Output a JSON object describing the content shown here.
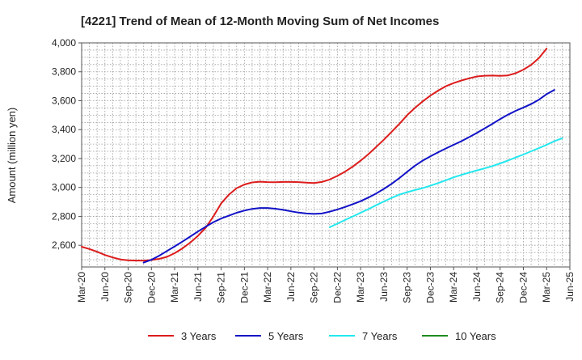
{
  "chart_data": {
    "type": "line",
    "title": "[4221]  Trend of Mean of 12-Month Moving Sum of Net Incomes",
    "xlabel": "",
    "ylabel": "Amount (million yen)",
    "ylim": [
      2450,
      4000
    ],
    "y_ticks": [
      2600,
      2800,
      3000,
      3200,
      3400,
      3600,
      3800,
      4000
    ],
    "y_tick_labels": [
      "2,600",
      "2,800",
      "3,000",
      "3,200",
      "3,400",
      "3,600",
      "3,800",
      "4,000"
    ],
    "x_range": [
      "2020-03",
      "2025-06"
    ],
    "x_tick_labels": [
      "Mar-20",
      "Jun-20",
      "Sep-20",
      "Dec-20",
      "Mar-21",
      "Jun-21",
      "Sep-21",
      "Dec-21",
      "Mar-22",
      "Jun-22",
      "Sep-22",
      "Dec-22",
      "Mar-23",
      "Jun-23",
      "Sep-23",
      "Dec-23",
      "Mar-24",
      "Jun-24",
      "Sep-24",
      "Dec-24",
      "Mar-25",
      "Jun-25"
    ],
    "grid": true,
    "legend_position": "bottom",
    "series": [
      {
        "name": "3 Years",
        "color": "#dd1c1c",
        "points": [
          [
            "2020-03",
            2590
          ],
          [
            "2020-04",
            2574
          ],
          [
            "2020-05",
            2555
          ],
          [
            "2020-06",
            2533
          ],
          [
            "2020-07",
            2516
          ],
          [
            "2020-08",
            2502
          ],
          [
            "2020-09",
            2496
          ],
          [
            "2020-10",
            2494
          ],
          [
            "2020-11",
            2494
          ],
          [
            "2020-12",
            2498
          ],
          [
            "2021-01",
            2506
          ],
          [
            "2021-02",
            2520
          ],
          [
            "2021-03",
            2545
          ],
          [
            "2021-04",
            2578
          ],
          [
            "2021-05",
            2618
          ],
          [
            "2021-06",
            2665
          ],
          [
            "2021-07",
            2720
          ],
          [
            "2021-08",
            2800
          ],
          [
            "2021-09",
            2890
          ],
          [
            "2021-10",
            2950
          ],
          [
            "2021-11",
            2995
          ],
          [
            "2021-12",
            3020
          ],
          [
            "2022-01",
            3035
          ],
          [
            "2022-02",
            3040
          ],
          [
            "2022-03",
            3037
          ],
          [
            "2022-04",
            3036
          ],
          [
            "2022-05",
            3038
          ],
          [
            "2022-06",
            3038
          ],
          [
            "2022-07",
            3037
          ],
          [
            "2022-08",
            3033
          ],
          [
            "2022-09",
            3030
          ],
          [
            "2022-10",
            3038
          ],
          [
            "2022-11",
            3055
          ],
          [
            "2022-12",
            3080
          ],
          [
            "2023-01",
            3110
          ],
          [
            "2023-02",
            3145
          ],
          [
            "2023-03",
            3185
          ],
          [
            "2023-04",
            3230
          ],
          [
            "2023-05",
            3280
          ],
          [
            "2023-06",
            3330
          ],
          [
            "2023-07",
            3385
          ],
          [
            "2023-08",
            3440
          ],
          [
            "2023-09",
            3500
          ],
          [
            "2023-10",
            3550
          ],
          [
            "2023-11",
            3595
          ],
          [
            "2023-12",
            3635
          ],
          [
            "2024-01",
            3670
          ],
          [
            "2024-02",
            3700
          ],
          [
            "2024-03",
            3722
          ],
          [
            "2024-04",
            3740
          ],
          [
            "2024-05",
            3755
          ],
          [
            "2024-06",
            3768
          ],
          [
            "2024-07",
            3773
          ],
          [
            "2024-08",
            3774
          ],
          [
            "2024-09",
            3772
          ],
          [
            "2024-10",
            3775
          ],
          [
            "2024-11",
            3790
          ],
          [
            "2024-12",
            3815
          ],
          [
            "2025-01",
            3848
          ],
          [
            "2025-02",
            3895
          ],
          [
            "2025-03",
            3960
          ]
        ]
      },
      {
        "name": "5 Years",
        "color": "#1212c8",
        "points": [
          [
            "2020-11",
            2480
          ],
          [
            "2020-12",
            2500
          ],
          [
            "2021-01",
            2528
          ],
          [
            "2021-02",
            2560
          ],
          [
            "2021-03",
            2592
          ],
          [
            "2021-04",
            2625
          ],
          [
            "2021-05",
            2660
          ],
          [
            "2021-06",
            2695
          ],
          [
            "2021-07",
            2728
          ],
          [
            "2021-08",
            2760
          ],
          [
            "2021-09",
            2785
          ],
          [
            "2021-10",
            2805
          ],
          [
            "2021-11",
            2825
          ],
          [
            "2021-12",
            2840
          ],
          [
            "2022-01",
            2852
          ],
          [
            "2022-02",
            2858
          ],
          [
            "2022-03",
            2858
          ],
          [
            "2022-04",
            2853
          ],
          [
            "2022-05",
            2845
          ],
          [
            "2022-06",
            2835
          ],
          [
            "2022-07",
            2826
          ],
          [
            "2022-08",
            2820
          ],
          [
            "2022-09",
            2817
          ],
          [
            "2022-10",
            2820
          ],
          [
            "2022-11",
            2832
          ],
          [
            "2022-12",
            2848
          ],
          [
            "2023-01",
            2865
          ],
          [
            "2023-02",
            2885
          ],
          [
            "2023-03",
            2905
          ],
          [
            "2023-04",
            2930
          ],
          [
            "2023-05",
            2958
          ],
          [
            "2023-06",
            2990
          ],
          [
            "2023-07",
            3025
          ],
          [
            "2023-08",
            3065
          ],
          [
            "2023-09",
            3108
          ],
          [
            "2023-10",
            3150
          ],
          [
            "2023-11",
            3185
          ],
          [
            "2023-12",
            3215
          ],
          [
            "2024-01",
            3243
          ],
          [
            "2024-02",
            3270
          ],
          [
            "2024-03",
            3295
          ],
          [
            "2024-04",
            3320
          ],
          [
            "2024-05",
            3348
          ],
          [
            "2024-06",
            3377
          ],
          [
            "2024-07",
            3408
          ],
          [
            "2024-08",
            3440
          ],
          [
            "2024-09",
            3473
          ],
          [
            "2024-10",
            3503
          ],
          [
            "2024-11",
            3530
          ],
          [
            "2024-12",
            3553
          ],
          [
            "2025-01",
            3577
          ],
          [
            "2025-02",
            3607
          ],
          [
            "2025-03",
            3645
          ],
          [
            "2025-04",
            3675
          ]
        ]
      },
      {
        "name": "7 Years",
        "color": "#22e8ee",
        "points": [
          [
            "2022-11",
            2725
          ],
          [
            "2022-12",
            2750
          ],
          [
            "2023-01",
            2775
          ],
          [
            "2023-02",
            2800
          ],
          [
            "2023-03",
            2825
          ],
          [
            "2023-04",
            2850
          ],
          [
            "2023-05",
            2877
          ],
          [
            "2023-06",
            2903
          ],
          [
            "2023-07",
            2928
          ],
          [
            "2023-08",
            2950
          ],
          [
            "2023-09",
            2967
          ],
          [
            "2023-10",
            2982
          ],
          [
            "2023-11",
            2995
          ],
          [
            "2023-12",
            3012
          ],
          [
            "2024-01",
            3030
          ],
          [
            "2024-02",
            3050
          ],
          [
            "2024-03",
            3070
          ],
          [
            "2024-04",
            3087
          ],
          [
            "2024-05",
            3103
          ],
          [
            "2024-06",
            3118
          ],
          [
            "2024-07",
            3132
          ],
          [
            "2024-08",
            3148
          ],
          [
            "2024-09",
            3166
          ],
          [
            "2024-10",
            3186
          ],
          [
            "2024-11",
            3207
          ],
          [
            "2024-12",
            3228
          ],
          [
            "2025-01",
            3250
          ],
          [
            "2025-02",
            3272
          ],
          [
            "2025-03",
            3295
          ],
          [
            "2025-04",
            3320
          ],
          [
            "2025-05",
            3340
          ]
        ]
      },
      {
        "name": "10 Years",
        "color": "#1e8c1e",
        "points": []
      }
    ]
  }
}
